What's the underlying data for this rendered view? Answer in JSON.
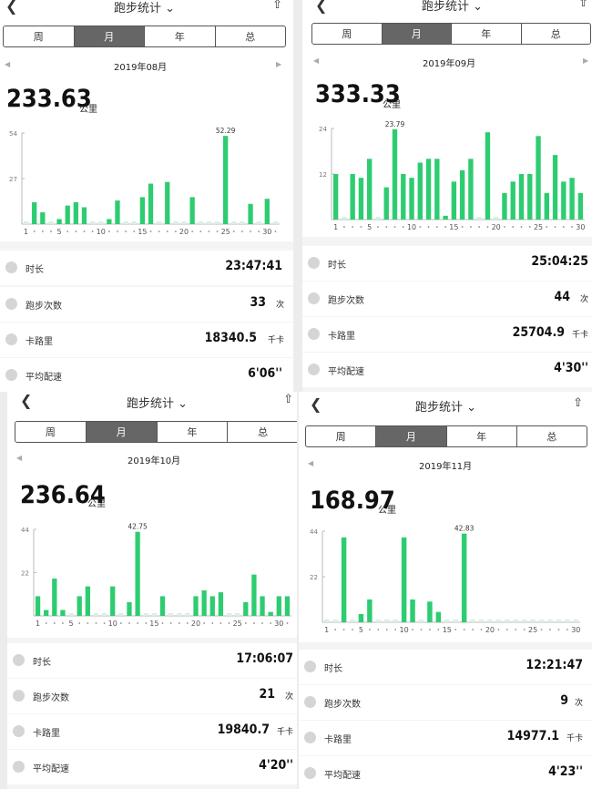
{
  "ui": {
    "title": "跑步统计",
    "tabs": [
      "周",
      "月",
      "年",
      "总"
    ],
    "active_tab": "月",
    "accent": "#2ecc71",
    "empty_bar_color": "#d9efe3"
  },
  "months": [
    {
      "month": "2019年08月",
      "total": "233.63",
      "total_unit": "公里",
      "stats": {
        "duration": {
          "label": "时长",
          "value": "23:47:41"
        },
        "runs": {
          "label": "跑步次数",
          "value": "33",
          "unit": "次"
        },
        "calories": {
          "label": "卡路里",
          "value": "18340.5",
          "unit": "千卡"
        },
        "pace": {
          "label": "平均配速",
          "value": "6'06''"
        }
      }
    },
    {
      "month": "2019年09月",
      "total": "333.33",
      "total_unit": "公里",
      "stats": {
        "duration": {
          "label": "时长",
          "value": "25:04:25"
        },
        "runs": {
          "label": "跑步次数",
          "value": "44",
          "unit": "次"
        },
        "calories": {
          "label": "卡路里",
          "value": "25704.9",
          "unit": "千卡"
        },
        "pace": {
          "label": "平均配速",
          "value": "4'30''"
        }
      }
    },
    {
      "month": "2019年10月",
      "total": "236.64",
      "total_unit": "公里",
      "stats": {
        "duration": {
          "label": "时长",
          "value": "17:06:07"
        },
        "runs": {
          "label": "跑步次数",
          "value": "21",
          "unit": "次"
        },
        "calories": {
          "label": "卡路里",
          "value": "19840.7",
          "unit": "千卡"
        },
        "pace": {
          "label": "平均配速",
          "value": "4'20''"
        }
      }
    },
    {
      "month": "2019年11月",
      "total": "168.97",
      "total_unit": "公里",
      "stats": {
        "duration": {
          "label": "时长",
          "value": "12:21:47"
        },
        "runs": {
          "label": "跑步次数",
          "value": "9",
          "unit": "次"
        },
        "calories": {
          "label": "卡路里",
          "value": "14977.1",
          "unit": "千卡"
        },
        "pace": {
          "label": "平均配速",
          "value": "4'23''"
        }
      }
    }
  ],
  "chart_data": [
    {
      "type": "bar",
      "month": "2019年08月",
      "categories": [
        1,
        2,
        3,
        4,
        5,
        6,
        7,
        8,
        9,
        10,
        11,
        12,
        13,
        14,
        15,
        16,
        17,
        18,
        19,
        20,
        21,
        22,
        23,
        24,
        25,
        26,
        27,
        28,
        29,
        30,
        31
      ],
      "values": [
        0,
        13,
        7,
        0,
        3,
        11,
        13,
        10,
        0,
        0,
        3,
        14,
        0,
        0,
        16,
        24,
        0,
        25,
        0,
        0,
        16,
        0,
        0,
        0,
        52.29,
        0,
        0,
        12,
        0,
        15,
        0
      ],
      "yticks": [
        27,
        54
      ],
      "xticks": [
        "1",
        "5",
        "10",
        "15",
        "20",
        "25",
        "30"
      ],
      "ylim": [
        0,
        54
      ],
      "max_label": "52.29"
    },
    {
      "type": "bar",
      "month": "2019年09月",
      "categories": [
        1,
        2,
        3,
        4,
        5,
        6,
        7,
        8,
        9,
        10,
        11,
        12,
        13,
        14,
        15,
        16,
        17,
        18,
        19,
        20,
        21,
        22,
        23,
        24,
        25,
        26,
        27,
        28,
        29,
        30
      ],
      "values": [
        12,
        0,
        12,
        11,
        16,
        0,
        8.5,
        23.79,
        12,
        11,
        15,
        16,
        16,
        1,
        10,
        13,
        16,
        0,
        23,
        0,
        7,
        10,
        12,
        12,
        22,
        7,
        17,
        10,
        11,
        7
      ],
      "yticks": [
        12,
        24
      ],
      "xticks": [
        "1",
        "5",
        "10",
        "15",
        "20",
        "25",
        "30"
      ],
      "ylim": [
        0,
        24
      ],
      "max_label": "23.79"
    },
    {
      "type": "bar",
      "month": "2019年10月",
      "categories": [
        1,
        2,
        3,
        4,
        5,
        6,
        7,
        8,
        9,
        10,
        11,
        12,
        13,
        14,
        15,
        16,
        17,
        18,
        19,
        20,
        21,
        22,
        23,
        24,
        25,
        26,
        27,
        28,
        29,
        30,
        31
      ],
      "values": [
        10,
        3,
        19,
        3,
        0,
        10,
        15,
        0,
        0,
        15,
        0,
        7,
        42.75,
        0,
        0,
        10,
        0,
        0,
        0,
        10,
        13,
        10,
        12,
        0,
        0,
        7,
        21,
        10,
        2,
        10,
        10
      ],
      "yticks": [
        22,
        44
      ],
      "xticks": [
        "1",
        "5",
        "10",
        "15",
        "20",
        "25",
        "30"
      ],
      "ylim": [
        0,
        44
      ],
      "max_label": "42.75"
    },
    {
      "type": "bar",
      "month": "2019年11月",
      "categories": [
        1,
        2,
        3,
        4,
        5,
        6,
        7,
        8,
        9,
        10,
        11,
        12,
        13,
        14,
        15,
        16,
        17,
        18,
        19,
        20,
        21,
        22,
        23,
        24,
        25,
        26,
        27,
        28,
        29,
        30
      ],
      "values": [
        0,
        0,
        41,
        0,
        4,
        11,
        0,
        0,
        0,
        41,
        11,
        0,
        10,
        5,
        0,
        0,
        42.83,
        0,
        0,
        0,
        0,
        0,
        0,
        0,
        0,
        0,
        0,
        0,
        0,
        0
      ],
      "yticks": [
        22,
        44
      ],
      "xticks": [
        "1",
        "5",
        "10",
        "15",
        "20",
        "25",
        "30"
      ],
      "ylim": [
        0,
        44
      ],
      "max_label": "42.83"
    }
  ]
}
